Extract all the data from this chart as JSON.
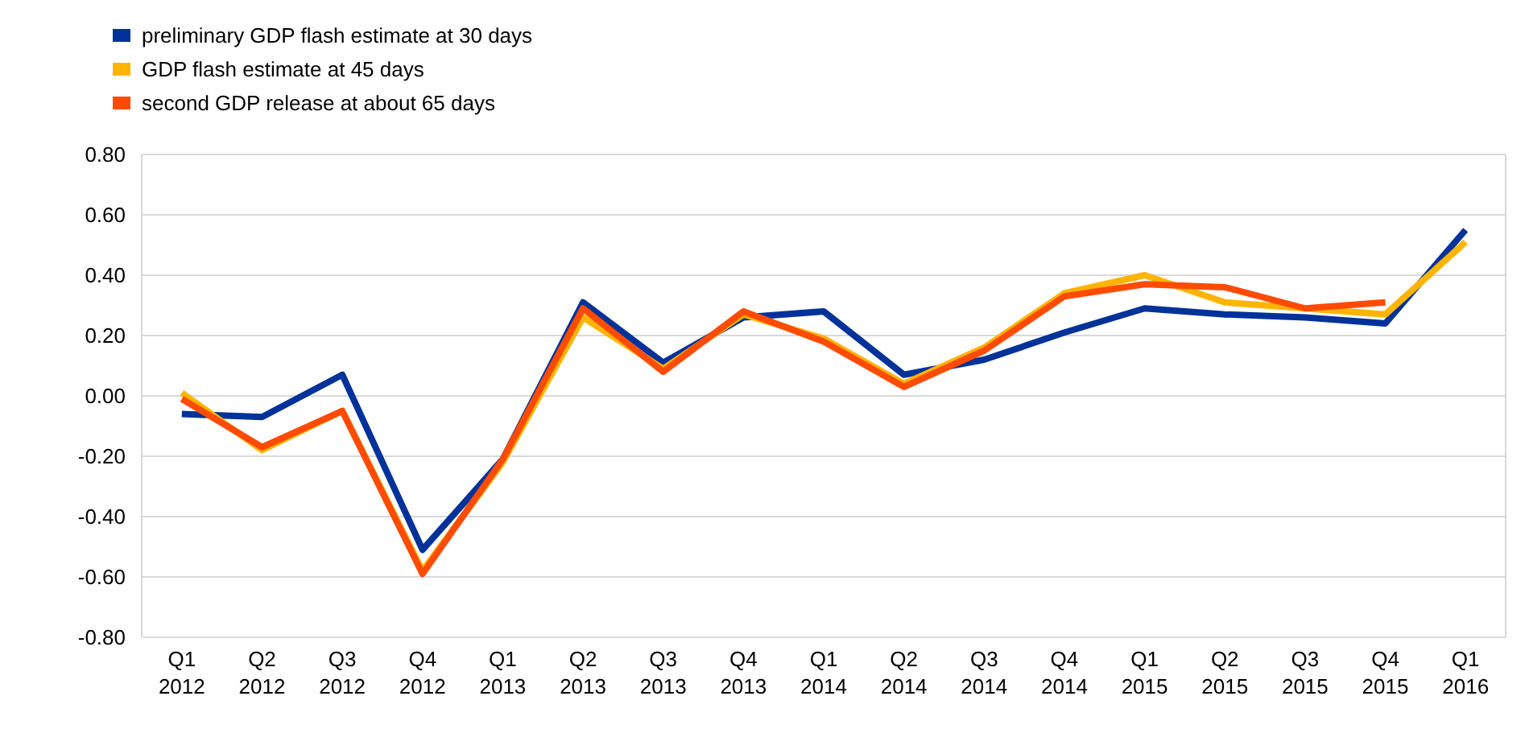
{
  "chart_data": {
    "type": "line",
    "categories": [
      "Q1 2012",
      "Q2 2012",
      "Q3 2012",
      "Q4 2012",
      "Q1 2013",
      "Q2 2013",
      "Q3 2013",
      "Q4 2013",
      "Q1 2014",
      "Q2 2014",
      "Q3 2014",
      "Q4 2014",
      "Q1 2015",
      "Q2 2015",
      "Q3 2015",
      "Q4 2015",
      "Q1 2016"
    ],
    "series": [
      {
        "name": "preliminary GDP flash estimate at 30 days",
        "color": "#003299",
        "values": [
          -0.06,
          -0.07,
          0.07,
          -0.51,
          -0.21,
          0.31,
          0.11,
          0.26,
          0.28,
          0.07,
          0.12,
          0.21,
          0.29,
          0.27,
          0.26,
          0.24,
          0.55
        ]
      },
      {
        "name": "GDP flash estimate at 45 days",
        "color": "#ffb400",
        "values": [
          0.01,
          -0.18,
          -0.05,
          -0.58,
          -0.22,
          0.26,
          0.09,
          0.27,
          0.19,
          0.04,
          0.16,
          0.34,
          0.4,
          0.31,
          0.29,
          0.27,
          0.51
        ]
      },
      {
        "name": "second GDP release at about 65 days",
        "color": "#ff4b00",
        "values": [
          -0.01,
          -0.17,
          -0.05,
          -0.59,
          -0.21,
          0.29,
          0.08,
          0.28,
          0.18,
          0.03,
          0.15,
          0.33,
          0.37,
          0.36,
          0.29,
          0.31,
          null
        ]
      }
    ],
    "ylim": [
      -0.8,
      0.8
    ],
    "yticks": [
      {
        "value": -0.8,
        "label": "-0.80"
      },
      {
        "value": -0.6,
        "label": "-0.60"
      },
      {
        "value": -0.4,
        "label": "-0.40"
      },
      {
        "value": -0.2,
        "label": "-0.20"
      },
      {
        "value": 0,
        "label": "0.00"
      },
      {
        "value": 0.2,
        "label": "0.20"
      },
      {
        "value": 0.4,
        "label": "0.40"
      },
      {
        "value": 0.6,
        "label": "0.60"
      },
      {
        "value": 0.8,
        "label": "0.80"
      }
    ],
    "grid": "y",
    "legend": "top left",
    "marker": "none",
    "line_style": "solid"
  }
}
